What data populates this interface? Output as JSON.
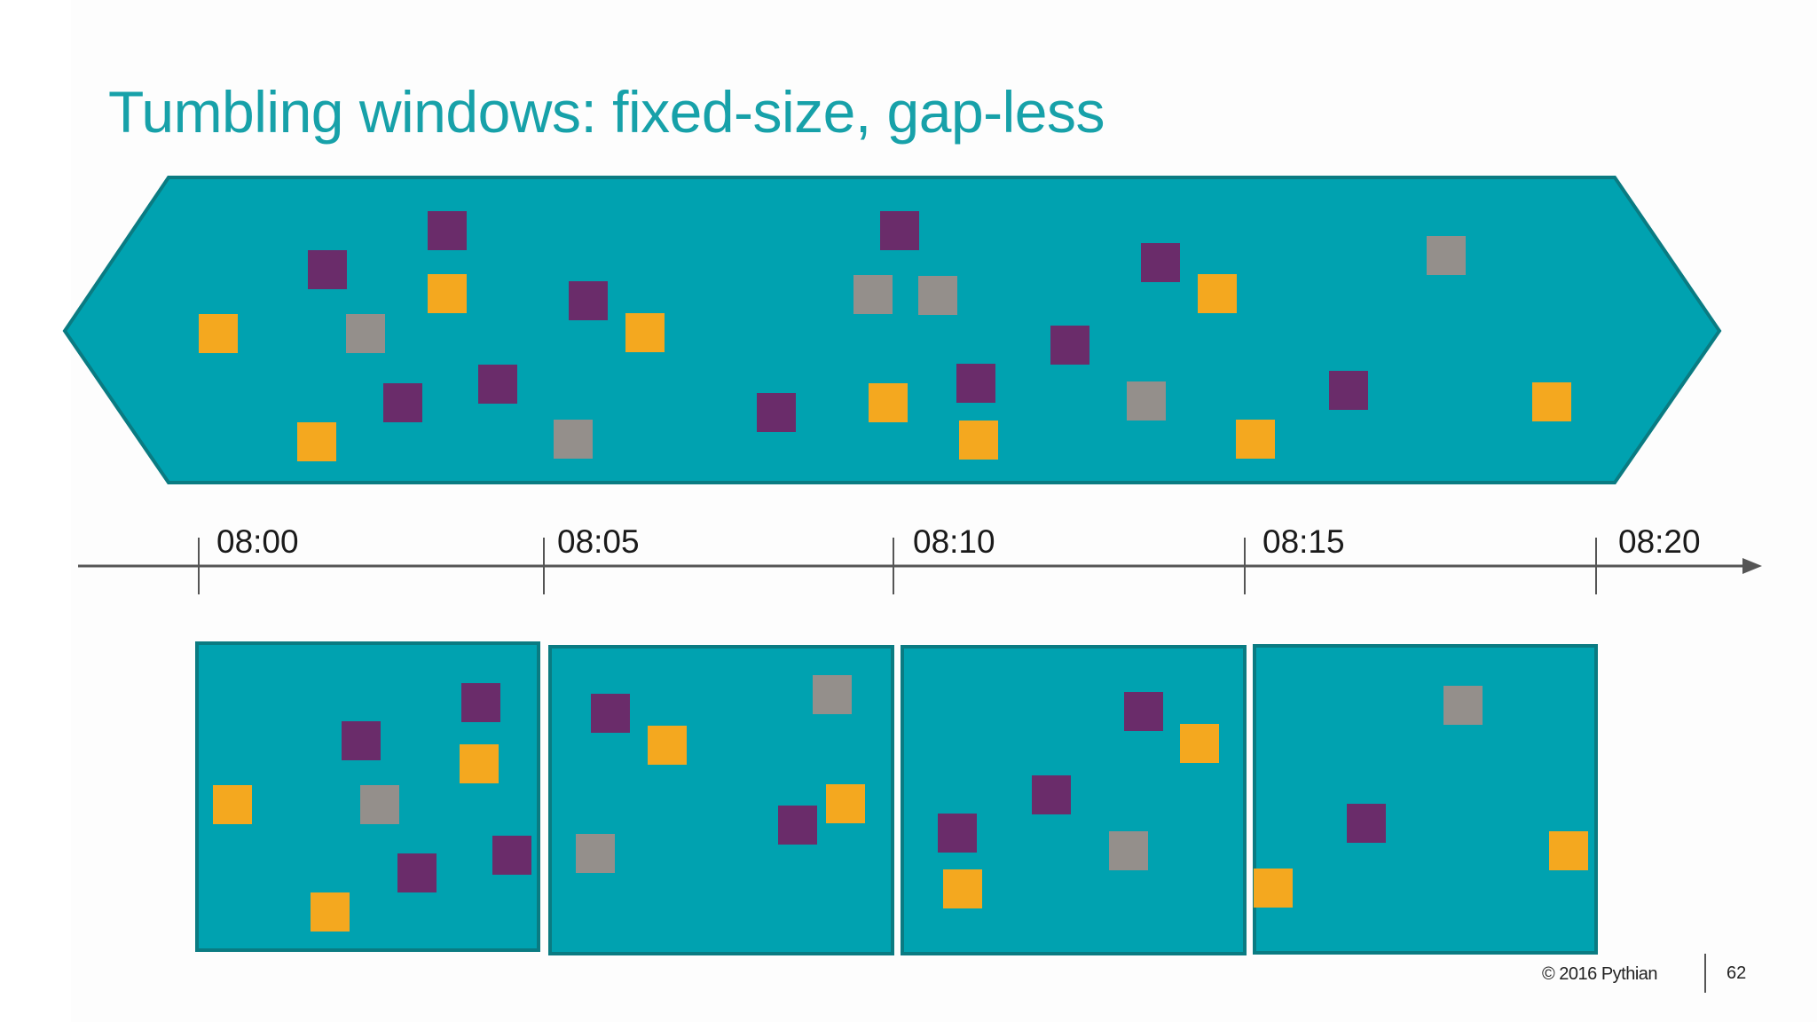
{
  "slide": {
    "title": "Tumbling windows: fixed-size, gap-less",
    "footer_copyright": "© 2016 Pythian",
    "page_number": "62"
  },
  "colors": {
    "title": "#17a1a9",
    "stream_fill": "#00a2b0",
    "stream_border": "#0a7b82",
    "event_purple": "#6a2c6a",
    "event_orange": "#f4a81f",
    "event_gray": "#948f8b",
    "axis": "#555555"
  },
  "timeline": {
    "ticks": [
      "08:00",
      "08:05",
      "08:10",
      "08:15",
      "08:20"
    ]
  },
  "windows": [
    {
      "start": "08:00",
      "end": "08:05"
    },
    {
      "start": "08:05",
      "end": "08:10"
    },
    {
      "start": "08:10",
      "end": "08:15"
    },
    {
      "start": "08:15",
      "end": "08:20"
    }
  ]
}
